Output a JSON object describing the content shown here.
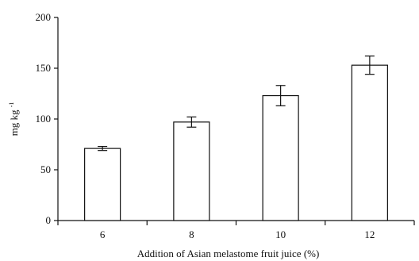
{
  "chart_data": {
    "type": "bar",
    "title": "",
    "xlabel": "Addition of Asian melastome fruit juice (%)",
    "ylabel": "mg kg",
    "ylabel_superscript": "-1",
    "categories": [
      "6",
      "8",
      "10",
      "12"
    ],
    "values": [
      71,
      97,
      123,
      153
    ],
    "errors": [
      2,
      5,
      10,
      9
    ],
    "ylim": [
      0,
      200
    ],
    "yticks": [
      "0",
      "50",
      "100",
      "150",
      "200"
    ],
    "grid": false,
    "bar_fill": "#ffffff",
    "bar_stroke": "#111111"
  }
}
